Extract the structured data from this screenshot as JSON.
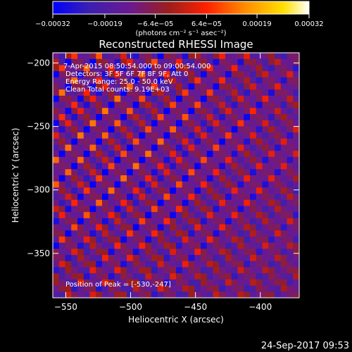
{
  "chart_data": {
    "type": "heatmap",
    "title": "Reconstructed RHESSI Image",
    "xlabel": "Heliocentric X (arcsec)",
    "ylabel": "Heliocentric Y (arcsec)",
    "xlim": [
      -560,
      -370
    ],
    "ylim": [
      -385,
      -192
    ],
    "x_ticks": [
      -550,
      -500,
      -450,
      -400
    ],
    "x_tick_labels": [
      "−550",
      "−500",
      "−450",
      "−400"
    ],
    "y_ticks": [
      -200,
      -250,
      -300,
      -350
    ],
    "y_tick_labels": [
      "−200",
      "−250",
      "−300",
      "−350"
    ],
    "colorbar": {
      "range": [
        -0.00032,
        0.00032
      ],
      "ticks": [
        -0.00032,
        -0.00019,
        -6.4e-05,
        6.4e-05,
        0.00019,
        0.00032
      ],
      "tick_labels": [
        "−0.00032",
        "−0.00019",
        "−6.4e−05",
        "6.4e−05",
        "0.00019",
        "0.00032"
      ],
      "units": "(photons cm⁻² s⁻¹ asec⁻²)",
      "colors": [
        "#0000ff",
        "#3b1fb0",
        "#6a1a90",
        "#9a1e1e",
        "#ff2000",
        "#ff8c00",
        "#ffe000",
        "#ffffff"
      ]
    },
    "annotations": {
      "time_range": "7-Apr-2015 08:50:54.000 to 09:00:54.000",
      "detectors": "Detectors: 3F 5F 6F 7F 8F 9F, Att 0",
      "energy_range": "Energy Range: 25.0 - 50.0 keV",
      "clean_info": "Clean    Total counts: 9.19E+03",
      "peak": "Position of Peak = [-530,-247]"
    },
    "pattern": {
      "description_value": "diagonal stripe pattern",
      "peak_x": -530,
      "peak_y": -247
    },
    "date_stamp": "24-Sep-2017 09:53"
  }
}
